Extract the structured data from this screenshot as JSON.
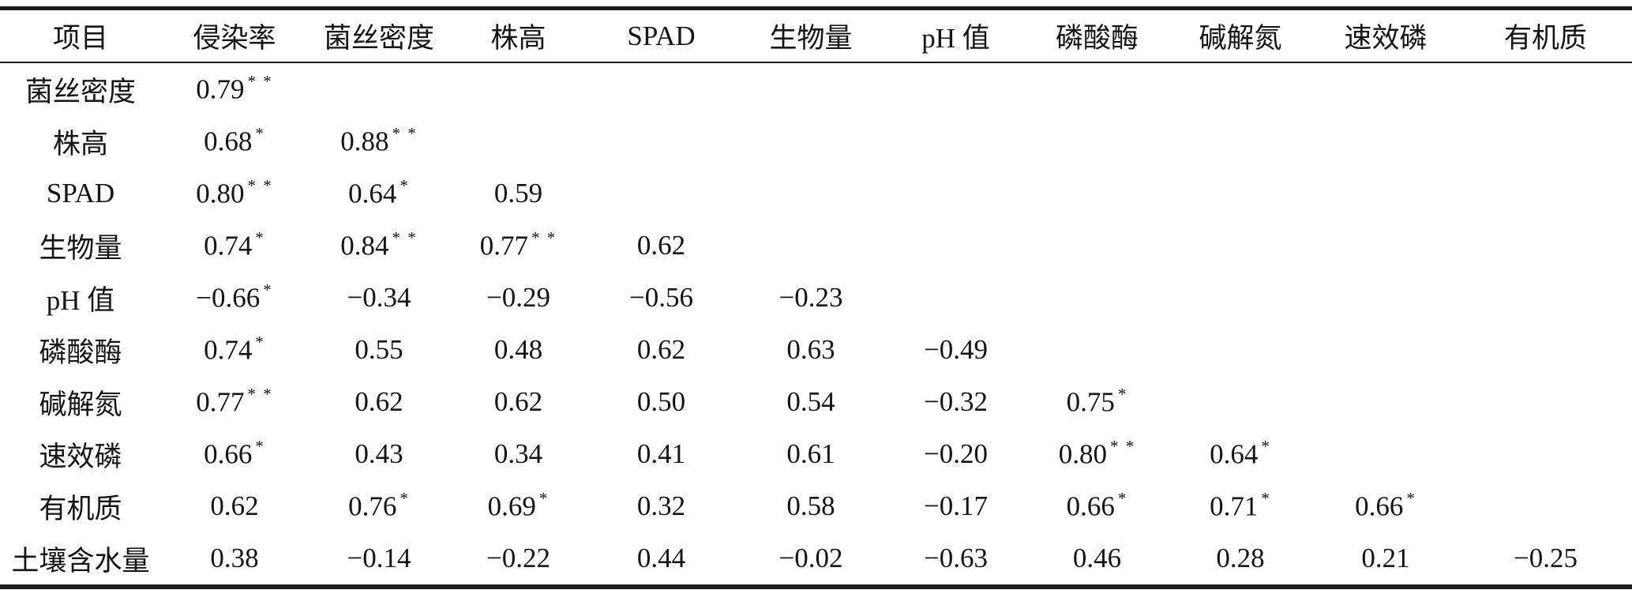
{
  "table": {
    "headers": [
      "项目",
      "侵染率",
      "菌丝密度",
      "株高",
      "SPAD",
      "生物量",
      "pH 值",
      "磷酸酶",
      "碱解氮",
      "速效磷",
      "有机质"
    ],
    "rows": [
      {
        "label": "菌丝密度",
        "values": [
          {
            "v": "0.79",
            "s": 2
          }
        ]
      },
      {
        "label": "株高",
        "values": [
          {
            "v": "0.68",
            "s": 1
          },
          {
            "v": "0.88",
            "s": 2
          }
        ]
      },
      {
        "label": "SPAD",
        "values": [
          {
            "v": "0.80",
            "s": 2
          },
          {
            "v": "0.64",
            "s": 1
          },
          {
            "v": "0.59",
            "s": 0
          }
        ]
      },
      {
        "label": "生物量",
        "values": [
          {
            "v": "0.74",
            "s": 1
          },
          {
            "v": "0.84",
            "s": 2
          },
          {
            "v": "0.77",
            "s": 2
          },
          {
            "v": "0.62",
            "s": 0
          }
        ]
      },
      {
        "label": "pH 值",
        "values": [
          {
            "v": "−0.66",
            "s": 1
          },
          {
            "v": "−0.34",
            "s": 0
          },
          {
            "v": "−0.29",
            "s": 0
          },
          {
            "v": "−0.56",
            "s": 0
          },
          {
            "v": "−0.23",
            "s": 0
          }
        ]
      },
      {
        "label": "磷酸酶",
        "values": [
          {
            "v": "0.74",
            "s": 1
          },
          {
            "v": "0.55",
            "s": 0
          },
          {
            "v": "0.48",
            "s": 0
          },
          {
            "v": "0.62",
            "s": 0
          },
          {
            "v": "0.63",
            "s": 0
          },
          {
            "v": "−0.49",
            "s": 0
          }
        ]
      },
      {
        "label": "碱解氮",
        "values": [
          {
            "v": "0.77",
            "s": 2
          },
          {
            "v": "0.62",
            "s": 0
          },
          {
            "v": "0.62",
            "s": 0
          },
          {
            "v": "0.50",
            "s": 0
          },
          {
            "v": "0.54",
            "s": 0
          },
          {
            "v": "−0.32",
            "s": 0
          },
          {
            "v": "0.75",
            "s": 1
          }
        ]
      },
      {
        "label": "速效磷",
        "values": [
          {
            "v": "0.66",
            "s": 1
          },
          {
            "v": "0.43",
            "s": 0
          },
          {
            "v": "0.34",
            "s": 0
          },
          {
            "v": "0.41",
            "s": 0
          },
          {
            "v": "0.61",
            "s": 0
          },
          {
            "v": "−0.20",
            "s": 0
          },
          {
            "v": "0.80",
            "s": 2
          },
          {
            "v": "0.64",
            "s": 1
          }
        ]
      },
      {
        "label": "有机质",
        "values": [
          {
            "v": "0.62",
            "s": 0
          },
          {
            "v": "0.76",
            "s": 1
          },
          {
            "v": "0.69",
            "s": 1
          },
          {
            "v": "0.32",
            "s": 0
          },
          {
            "v": "0.58",
            "s": 0
          },
          {
            "v": "−0.17",
            "s": 0
          },
          {
            "v": "0.66",
            "s": 1
          },
          {
            "v": "0.71",
            "s": 1
          },
          {
            "v": "0.66",
            "s": 1
          }
        ]
      },
      {
        "label": "土壤含水量",
        "values": [
          {
            "v": "0.38",
            "s": 0
          },
          {
            "v": "−0.14",
            "s": 0
          },
          {
            "v": "−0.22",
            "s": 0
          },
          {
            "v": "0.44",
            "s": 0
          },
          {
            "v": "−0.02",
            "s": 0
          },
          {
            "v": "−0.63",
            "s": 0
          },
          {
            "v": "0.46",
            "s": 0
          },
          {
            "v": "0.28",
            "s": 0
          },
          {
            "v": "0.21",
            "s": 0
          },
          {
            "v": "−0.25",
            "s": 0
          }
        ]
      }
    ],
    "sig_markers": {
      "1": "*",
      "2": "* *"
    },
    "colors": {
      "text": "#141414",
      "rule": "#1c1c1c",
      "background": "#ffffff"
    }
  }
}
